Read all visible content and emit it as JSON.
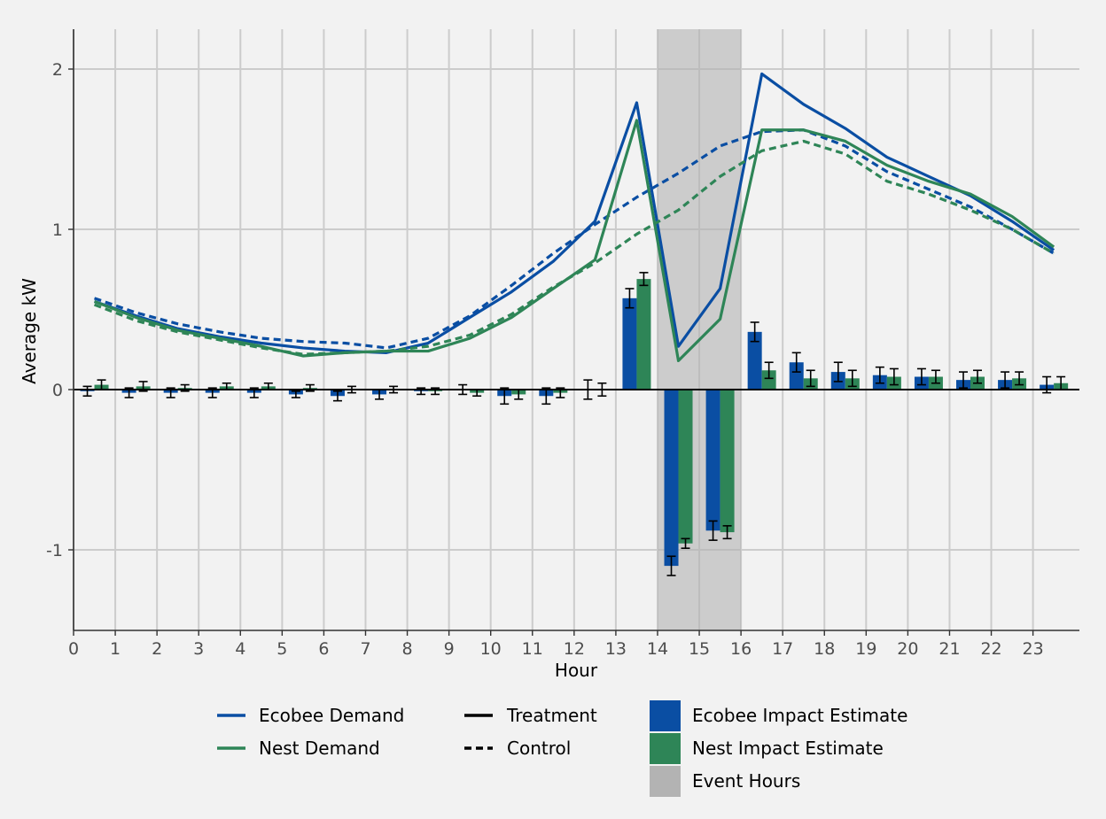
{
  "chart_data": {
    "type": "bar",
    "title": "",
    "xlabel": "Hour",
    "ylabel": "Average kW",
    "xlim": [
      0,
      24
    ],
    "ylim": [
      -1.5,
      2.25
    ],
    "x_ticks": [
      "0",
      "1",
      "2",
      "3",
      "4",
      "5",
      "6",
      "7",
      "8",
      "9",
      "10",
      "11",
      "12",
      "13",
      "14",
      "15",
      "16",
      "17",
      "18",
      "19",
      "20",
      "21",
      "22",
      "23"
    ],
    "y_ticks": [
      {
        "value": 2,
        "label": "2"
      },
      {
        "value": 1,
        "label": "1"
      },
      {
        "value": 0,
        "label": "0"
      },
      {
        "value": -1,
        "label": "-1"
      }
    ],
    "grid": true,
    "event_hours": [
      14,
      16
    ],
    "legend_position": "bottom",
    "colors": {
      "ecobee": "#0a4ea3",
      "nest": "#2e8557",
      "event": "#b3b3b3",
      "errorbar": "#000000",
      "grid": "#cccccc",
      "background": "#f2f2f2"
    },
    "line_series": [
      {
        "name": "Ecobee Demand",
        "group": "Treatment",
        "x": [
          0.5,
          1.5,
          2.5,
          3.5,
          4.5,
          5.5,
          6.5,
          7.5,
          8.5,
          9.5,
          10.5,
          11.5,
          12.5,
          13.5,
          14.5,
          15.5,
          16.5,
          17.5,
          18.5,
          19.5,
          20.5,
          21.5,
          22.5,
          23.5
        ],
        "y": [
          0.55,
          0.46,
          0.38,
          0.33,
          0.29,
          0.26,
          0.24,
          0.23,
          0.29,
          0.45,
          0.61,
          0.8,
          1.05,
          1.79,
          0.27,
          0.63,
          1.97,
          1.78,
          1.63,
          1.45,
          1.33,
          1.21,
          1.05,
          0.87
        ]
      },
      {
        "name": "Ecobee Demand",
        "group": "Control",
        "x": [
          0.5,
          1.5,
          2.5,
          3.5,
          4.5,
          5.5,
          6.5,
          7.5,
          8.5,
          9.5,
          10.5,
          11.5,
          12.5,
          13.5,
          14.5,
          15.5,
          16.5,
          17.5,
          18.5,
          19.5,
          20.5,
          21.5,
          22.5,
          23.5
        ],
        "y": [
          0.57,
          0.48,
          0.41,
          0.36,
          0.32,
          0.3,
          0.29,
          0.26,
          0.32,
          0.46,
          0.65,
          0.85,
          1.03,
          1.2,
          1.35,
          1.52,
          1.61,
          1.62,
          1.52,
          1.36,
          1.25,
          1.14,
          1.0,
          0.85
        ]
      },
      {
        "name": "Nest Demand",
        "group": "Treatment",
        "x": [
          0.5,
          1.5,
          2.5,
          3.5,
          4.5,
          5.5,
          6.5,
          7.5,
          8.5,
          9.5,
          10.5,
          11.5,
          12.5,
          13.5,
          14.5,
          15.5,
          16.5,
          17.5,
          18.5,
          19.5,
          20.5,
          21.5,
          22.5,
          23.5
        ],
        "y": [
          0.55,
          0.45,
          0.37,
          0.32,
          0.27,
          0.21,
          0.23,
          0.24,
          0.24,
          0.32,
          0.45,
          0.63,
          0.81,
          1.68,
          0.18,
          0.44,
          1.62,
          1.62,
          1.55,
          1.4,
          1.3,
          1.22,
          1.08,
          0.89
        ]
      },
      {
        "name": "Nest Demand",
        "group": "Control",
        "x": [
          0.5,
          1.5,
          2.5,
          3.5,
          4.5,
          5.5,
          6.5,
          7.5,
          8.5,
          9.5,
          10.5,
          11.5,
          12.5,
          13.5,
          14.5,
          15.5,
          16.5,
          17.5,
          18.5,
          19.5,
          20.5,
          21.5,
          22.5,
          23.5
        ],
        "y": [
          0.53,
          0.43,
          0.36,
          0.31,
          0.26,
          0.22,
          0.23,
          0.24,
          0.27,
          0.34,
          0.47,
          0.64,
          0.79,
          0.97,
          1.12,
          1.33,
          1.49,
          1.55,
          1.47,
          1.3,
          1.22,
          1.12,
          1.0,
          0.85
        ]
      }
    ],
    "bar_series": [
      {
        "name": "Ecobee Impact Estimate",
        "x": [
          0,
          1,
          2,
          3,
          4,
          5,
          6,
          7,
          8,
          9,
          10,
          11,
          12,
          13,
          14,
          15,
          16,
          17,
          18,
          19,
          20,
          21,
          22,
          23
        ],
        "values": [
          -0.01,
          -0.02,
          -0.02,
          -0.02,
          -0.02,
          -0.03,
          -0.04,
          -0.03,
          -0.01,
          0.0,
          -0.04,
          -0.04,
          0.0,
          0.57,
          -1.1,
          -0.88,
          0.36,
          0.17,
          0.11,
          0.09,
          0.08,
          0.06,
          0.06,
          0.03
        ],
        "error": [
          0.03,
          0.03,
          0.03,
          0.03,
          0.03,
          0.02,
          0.03,
          0.03,
          0.02,
          0.03,
          0.05,
          0.05,
          0.06,
          0.06,
          0.06,
          0.06,
          0.06,
          0.06,
          0.06,
          0.05,
          0.05,
          0.05,
          0.05,
          0.05
        ]
      },
      {
        "name": "Nest Impact Estimate",
        "x": [
          0,
          1,
          2,
          3,
          4,
          5,
          6,
          7,
          8,
          9,
          10,
          11,
          12,
          13,
          14,
          15,
          16,
          17,
          18,
          19,
          20,
          21,
          22,
          23
        ],
        "values": [
          0.03,
          0.02,
          0.01,
          0.02,
          0.02,
          0.01,
          0.0,
          0.0,
          -0.01,
          -0.02,
          -0.03,
          -0.02,
          0.0,
          0.69,
          -0.96,
          -0.89,
          0.12,
          0.07,
          0.07,
          0.08,
          0.08,
          0.08,
          0.07,
          0.04
        ],
        "error": [
          0.03,
          0.03,
          0.02,
          0.02,
          0.02,
          0.02,
          0.02,
          0.02,
          0.02,
          0.02,
          0.03,
          0.03,
          0.04,
          0.04,
          0.03,
          0.04,
          0.05,
          0.05,
          0.05,
          0.05,
          0.04,
          0.04,
          0.04,
          0.04
        ]
      }
    ]
  },
  "legend": {
    "col1": [
      {
        "label": "Ecobee Demand",
        "color": "#0a4ea3"
      },
      {
        "label": "Nest Demand",
        "color": "#2e8557"
      }
    ],
    "col2": [
      {
        "label": "Treatment",
        "dash": "solid"
      },
      {
        "label": "Control",
        "dash": "dashed"
      }
    ],
    "col3": [
      {
        "label": "Ecobee Impact Estimate",
        "color": "#0a4ea3"
      },
      {
        "label": "Nest Impact Estimate",
        "color": "#2e8557"
      },
      {
        "label": "Event Hours",
        "color": "#b3b3b3"
      }
    ]
  }
}
